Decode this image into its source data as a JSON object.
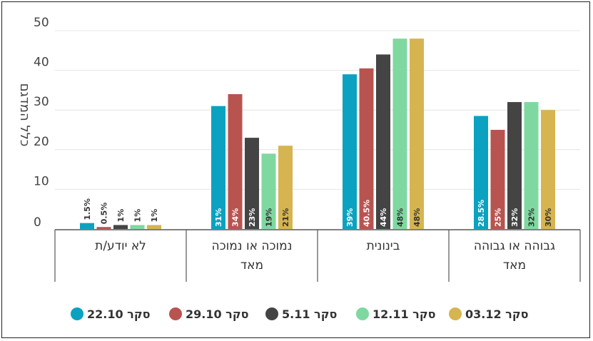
{
  "chart_data": {
    "type": "bar",
    "ylabel": "כלל המדגם",
    "ylim": [
      0,
      50
    ],
    "yticks": [
      0,
      10,
      20,
      30,
      40,
      50
    ],
    "grid": true,
    "legend_position": "bottom",
    "direction": "rtl",
    "categories": [
      [
        "גבוהה או גבוהה",
        "מאד"
      ],
      [
        "בינונית"
      ],
      [
        "נמוכה או נמוכה",
        "מאד"
      ],
      [
        "לא יודע/ת"
      ]
    ],
    "series": [
      {
        "name": "סקר 22.10",
        "color": "#0aa2c0",
        "values": [
          28.5,
          39,
          31,
          1.5
        ],
        "labels": [
          "28.5%",
          "39%",
          "31%",
          "1.5%"
        ]
      },
      {
        "name": "סקר 29.10",
        "color": "#b85450",
        "values": [
          25,
          40.5,
          34,
          0.5
        ],
        "labels": [
          "25%",
          "40.5%",
          "34%",
          "0.5%"
        ]
      },
      {
        "name": "סקר 5.11",
        "color": "#444444",
        "values": [
          32,
          44,
          23,
          1
        ],
        "labels": [
          "32%",
          "44%",
          "23%",
          "1%"
        ]
      },
      {
        "name": "סקר 12.11",
        "color": "#7fd8a0",
        "values": [
          32,
          48,
          19,
          1
        ],
        "labels": [
          "32%",
          "48%",
          "19%",
          "1%"
        ]
      },
      {
        "name": "סקר 03.12",
        "color": "#d6b450",
        "values": [
          30,
          48,
          21,
          1
        ],
        "labels": [
          "30%",
          "48%",
          "21%",
          "1%"
        ]
      }
    ]
  }
}
